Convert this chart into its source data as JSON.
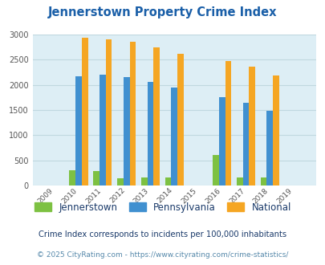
{
  "title": "Jennerstown Property Crime Index",
  "years": [
    2009,
    2010,
    2011,
    2012,
    2013,
    2014,
    2015,
    2016,
    2017,
    2018,
    2019
  ],
  "jennerstown": [
    0,
    300,
    295,
    145,
    165,
    160,
    0,
    610,
    165,
    165,
    0
  ],
  "pennsylvania": [
    0,
    2170,
    2200,
    2155,
    2060,
    1950,
    0,
    1750,
    1640,
    1490,
    0
  ],
  "national": [
    0,
    2930,
    2910,
    2860,
    2750,
    2610,
    0,
    2470,
    2355,
    2190,
    0
  ],
  "jennerstown_color": "#7dc142",
  "pennsylvania_color": "#4090d0",
  "national_color": "#f5a623",
  "bg_color": "#ddeef5",
  "ylim": [
    0,
    3000
  ],
  "yticks": [
    0,
    500,
    1000,
    1500,
    2000,
    2500,
    3000
  ],
  "legend_labels": [
    "Jennerstown",
    "Pennsylvania",
    "National"
  ],
  "footnote1": "Crime Index corresponds to incidents per 100,000 inhabitants",
  "footnote2": "© 2025 CityRating.com - https://www.cityrating.com/crime-statistics/",
  "title_color": "#1a5fa8",
  "footnote1_color": "#1a3a6a",
  "footnote2_color": "#5588aa",
  "bar_width": 0.26,
  "grid_color": "#c0d8e0"
}
